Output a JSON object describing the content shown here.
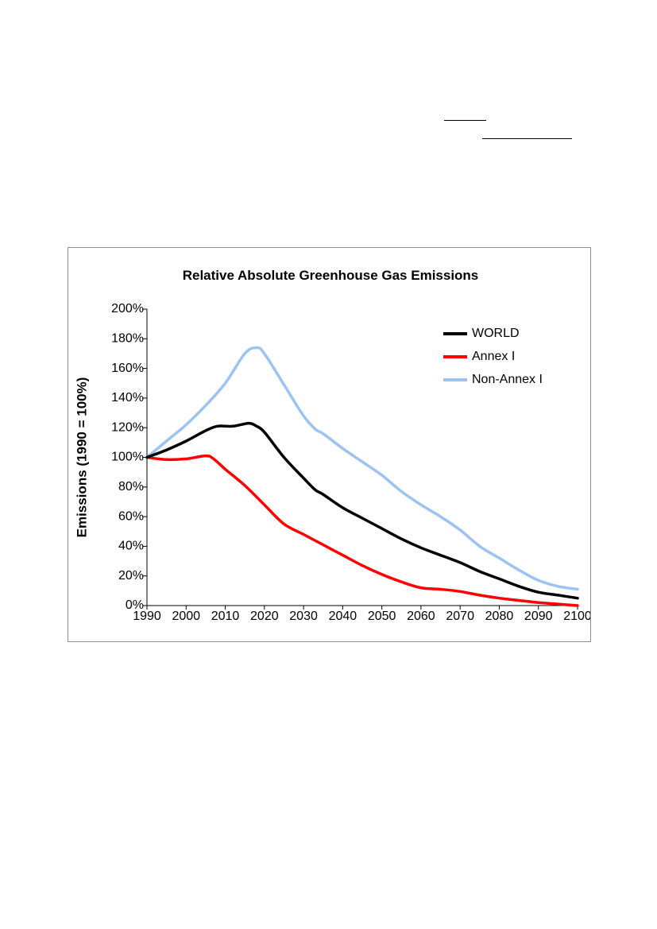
{
  "chart_data": {
    "type": "line",
    "title": "Relative Absolute Greenhouse Gas Emissions",
    "xlabel": "",
    "ylabel": "Emissions (1990 = 100%)",
    "xlim": [
      1990,
      2100
    ],
    "ylim": [
      0,
      200
    ],
    "x_ticks": [
      "1990",
      "2000",
      "2010",
      "2020",
      "2030",
      "2040",
      "2050",
      "2060",
      "2070",
      "2080",
      "2090",
      "2100"
    ],
    "y_ticks": [
      "0%",
      "20%",
      "40%",
      "60%",
      "80%",
      "100%",
      "120%",
      "140%",
      "160%",
      "180%",
      "200%"
    ],
    "grid": false,
    "legend_position": "top-right",
    "series": [
      {
        "name": "WORLD",
        "color": "#000000",
        "x": [
          1990,
          1995,
          2000,
          2005,
          2008,
          2012,
          2016,
          2018,
          2020,
          2025,
          2030,
          2033,
          2035,
          2040,
          2045,
          2050,
          2055,
          2060,
          2065,
          2070,
          2075,
          2080,
          2085,
          2090,
          2095,
          2100
        ],
        "values": [
          100,
          105,
          111,
          118,
          121,
          121,
          123,
          121,
          117,
          100,
          86,
          78,
          75,
          66,
          59,
          52,
          45,
          39,
          34,
          29,
          23,
          18,
          13,
          9,
          7,
          5
        ]
      },
      {
        "name": "Annex I",
        "color": "#ff0000",
        "x": [
          1990,
          1995,
          2000,
          2005,
          2007,
          2010,
          2015,
          2020,
          2025,
          2030,
          2035,
          2040,
          2045,
          2050,
          2055,
          2060,
          2065,
          2070,
          2075,
          2080,
          2085,
          2090,
          2095,
          2100
        ],
        "values": [
          100,
          98.5,
          99,
          101,
          99,
          92,
          81,
          68,
          55,
          48,
          41,
          34,
          27,
          21,
          16,
          12,
          11,
          9.5,
          7,
          5,
          3.5,
          2,
          1,
          0
        ]
      },
      {
        "name": "Non-Annex I",
        "color": "#9dc3f0",
        "x": [
          1990,
          1995,
          2000,
          2005,
          2010,
          2015,
          2018,
          2020,
          2025,
          2030,
          2033,
          2035,
          2040,
          2045,
          2050,
          2055,
          2060,
          2065,
          2070,
          2075,
          2080,
          2085,
          2090,
          2095,
          2100
        ],
        "values": [
          100,
          111,
          122,
          135,
          150,
          170,
          174,
          170,
          149,
          128,
          119,
          116,
          106,
          97,
          88,
          77,
          68,
          60,
          51,
          40,
          32,
          24,
          17,
          13,
          11
        ]
      }
    ]
  }
}
